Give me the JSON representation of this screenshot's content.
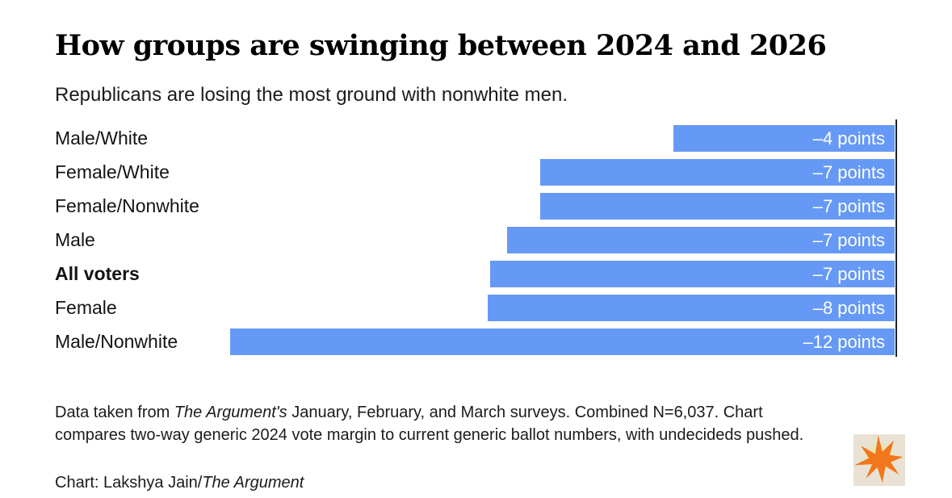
{
  "header": {
    "title": "How groups are swinging between 2024 and 2026",
    "subtitle": "Republicans are losing the most ground with nonwhite men."
  },
  "chart_data": {
    "type": "bar",
    "orientation": "horizontal",
    "title": "How groups are swinging between 2024 and 2026",
    "subtitle": "Republicans are losing the most ground with nonwhite men.",
    "categories": [
      "Male/White",
      "Female/White",
      "Female/Nonwhite",
      "Male",
      "All voters",
      "Female",
      "Male/Nonwhite"
    ],
    "values": [
      -4,
      -7,
      -7,
      -7,
      -7,
      -8,
      -12
    ],
    "estimated_precise_values": [
      -4.0,
      -6.4,
      -6.4,
      -7.0,
      -7.3,
      -7.35,
      -12.0
    ],
    "value_labels": [
      "–4 points",
      "–7 points",
      "–7 points",
      "–7 points",
      "–7 points",
      "–8 points",
      "–12 points"
    ],
    "emphasized_category": "All voters",
    "xlim": [
      -12,
      0
    ],
    "xlabel": "",
    "ylabel": "",
    "grid": false,
    "legend": false,
    "baseline_side": "right",
    "bar_color": "#6699f5",
    "value_label_color": "#ffffff",
    "axis_line_color": "#222222"
  },
  "footnote": {
    "segments": [
      {
        "text": "Data taken from ",
        "italic": false
      },
      {
        "text": "The Argument's",
        "italic": true
      },
      {
        "text": " January, February, and March surveys. Combined N=6,037. Chart compares two-way generic 2024 vote margin to current generic ballot numbers, with undecideds pushed.",
        "italic": false
      }
    ]
  },
  "credit": {
    "segments": [
      {
        "text": "Chart: Lakshya Jain/",
        "italic": false
      },
      {
        "text": "The Argument",
        "italic": true
      }
    ]
  },
  "logo": {
    "icon": "starburst-icon",
    "background": "#e9e2d4",
    "glow": "#e0eb7d",
    "star": "#f2761b"
  }
}
